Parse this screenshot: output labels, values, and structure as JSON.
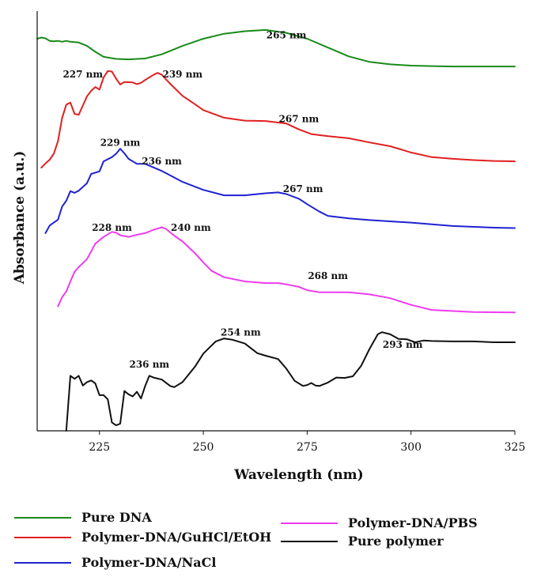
{
  "chart_data": {
    "type": "line",
    "xlabel": "Wavelength (nm)",
    "ylabel": "Absorbance (a.u.)",
    "xlim": [
      210,
      325
    ],
    "x_ticks": [
      225,
      250,
      275,
      300,
      325
    ],
    "y_ticks": "none",
    "legend_placement": "bottom",
    "series": [
      {
        "name": "Pure DNA",
        "color": "#1a8a1a",
        "points": [
          [
            210,
            0.934
          ],
          [
            211,
            0.937
          ],
          [
            212,
            0.935
          ],
          [
            213,
            0.929
          ],
          [
            214,
            0.928
          ],
          [
            215,
            0.929
          ],
          [
            216,
            0.927
          ],
          [
            217,
            0.929
          ],
          [
            218,
            0.927
          ],
          [
            220,
            0.925
          ],
          [
            222,
            0.917
          ],
          [
            224,
            0.903
          ],
          [
            226,
            0.891
          ],
          [
            229,
            0.886
          ],
          [
            232,
            0.885
          ],
          [
            236,
            0.887
          ],
          [
            240,
            0.897
          ],
          [
            245,
            0.917
          ],
          [
            250,
            0.934
          ],
          [
            255,
            0.946
          ],
          [
            260,
            0.952
          ],
          [
            265,
            0.955
          ],
          [
            270,
            0.948
          ],
          [
            275,
            0.934
          ],
          [
            280,
            0.913
          ],
          [
            285,
            0.892
          ],
          [
            290,
            0.879
          ],
          [
            295,
            0.873
          ],
          [
            300,
            0.87
          ],
          [
            305,
            0.869
          ],
          [
            310,
            0.868
          ],
          [
            320,
            0.868
          ],
          [
            325,
            0.868
          ]
        ]
      },
      {
        "name": "Polymer-DNA/GuHCl/EtOH",
        "color": "#e02020",
        "points": [
          [
            211,
            0.627
          ],
          [
            212,
            0.637
          ],
          [
            213,
            0.646
          ],
          [
            214,
            0.66
          ],
          [
            215,
            0.69
          ],
          [
            216,
            0.745
          ],
          [
            217,
            0.777
          ],
          [
            218,
            0.782
          ],
          [
            219,
            0.755
          ],
          [
            220,
            0.753
          ],
          [
            221,
            0.775
          ],
          [
            222,
            0.797
          ],
          [
            223,
            0.81
          ],
          [
            224,
            0.819
          ],
          [
            225,
            0.813
          ],
          [
            226,
            0.842
          ],
          [
            227,
            0.857
          ],
          [
            228,
            0.856
          ],
          [
            229,
            0.839
          ],
          [
            230,
            0.825
          ],
          [
            231,
            0.831
          ],
          [
            233,
            0.83
          ],
          [
            234,
            0.826
          ],
          [
            235,
            0.829
          ],
          [
            236,
            0.836
          ],
          [
            238,
            0.848
          ],
          [
            239,
            0.853
          ],
          [
            240,
            0.848
          ],
          [
            242,
            0.827
          ],
          [
            245,
            0.798
          ],
          [
            248,
            0.778
          ],
          [
            250,
            0.764
          ],
          [
            255,
            0.746
          ],
          [
            260,
            0.739
          ],
          [
            265,
            0.738
          ],
          [
            270,
            0.732
          ],
          [
            273,
            0.718
          ],
          [
            276,
            0.707
          ],
          [
            280,
            0.702
          ],
          [
            285,
            0.697
          ],
          [
            290,
            0.687
          ],
          [
            295,
            0.678
          ],
          [
            300,
            0.663
          ],
          [
            305,
            0.652
          ],
          [
            310,
            0.648
          ],
          [
            315,
            0.645
          ],
          [
            320,
            0.643
          ],
          [
            325,
            0.642
          ]
        ]
      },
      {
        "name": "Polymer-DNA/NaCl",
        "color": "#1f22d0",
        "points": [
          [
            212,
            0.471
          ],
          [
            213,
            0.489
          ],
          [
            214,
            0.496
          ],
          [
            215,
            0.503
          ],
          [
            216,
            0.534
          ],
          [
            217,
            0.548
          ],
          [
            218,
            0.571
          ],
          [
            219,
            0.567
          ],
          [
            220,
            0.572
          ],
          [
            222,
            0.59
          ],
          [
            223,
            0.612
          ],
          [
            225,
            0.618
          ],
          [
            226,
            0.642
          ],
          [
            228,
            0.652
          ],
          [
            229,
            0.66
          ],
          [
            230,
            0.672
          ],
          [
            231,
            0.661
          ],
          [
            232,
            0.648
          ],
          [
            234,
            0.636
          ],
          [
            236,
            0.636
          ],
          [
            240,
            0.619
          ],
          [
            245,
            0.593
          ],
          [
            250,
            0.574
          ],
          [
            255,
            0.561
          ],
          [
            260,
            0.561
          ],
          [
            265,
            0.566
          ],
          [
            268,
            0.568
          ],
          [
            270,
            0.564
          ],
          [
            273,
            0.553
          ],
          [
            275,
            0.54
          ],
          [
            278,
            0.522
          ],
          [
            280,
            0.512
          ],
          [
            285,
            0.506
          ],
          [
            290,
            0.502
          ],
          [
            300,
            0.496
          ],
          [
            310,
            0.488
          ],
          [
            320,
            0.484
          ],
          [
            325,
            0.483
          ]
        ]
      },
      {
        "name": "Polymer-DNA/PBS",
        "color": "#ee3cee",
        "points": [
          [
            215,
            0.297
          ],
          [
            216,
            0.318
          ],
          [
            217,
            0.332
          ],
          [
            218,
            0.356
          ],
          [
            219,
            0.379
          ],
          [
            220,
            0.39
          ],
          [
            222,
            0.409
          ],
          [
            224,
            0.446
          ],
          [
            226,
            0.462
          ],
          [
            228,
            0.474
          ],
          [
            229,
            0.472
          ],
          [
            230,
            0.466
          ],
          [
            232,
            0.462
          ],
          [
            234,
            0.467
          ],
          [
            236,
            0.471
          ],
          [
            238,
            0.479
          ],
          [
            240,
            0.485
          ],
          [
            241,
            0.481
          ],
          [
            243,
            0.465
          ],
          [
            245,
            0.451
          ],
          [
            248,
            0.423
          ],
          [
            250,
            0.401
          ],
          [
            252,
            0.381
          ],
          [
            255,
            0.366
          ],
          [
            260,
            0.356
          ],
          [
            265,
            0.352
          ],
          [
            268,
            0.352
          ],
          [
            270,
            0.349
          ],
          [
            273,
            0.343
          ],
          [
            275,
            0.335
          ],
          [
            278,
            0.33
          ],
          [
            285,
            0.33
          ],
          [
            290,
            0.325
          ],
          [
            295,
            0.316
          ],
          [
            300,
            0.3
          ],
          [
            305,
            0.288
          ],
          [
            315,
            0.283
          ],
          [
            325,
            0.282
          ]
        ]
      },
      {
        "name": "Pure polymer",
        "color": "#111111",
        "points": [
          [
            217,
            0.0
          ],
          [
            218,
            0.131
          ],
          [
            219,
            0.124
          ],
          [
            220,
            0.131
          ],
          [
            221,
            0.108
          ],
          [
            222,
            0.116
          ],
          [
            223,
            0.12
          ],
          [
            224,
            0.113
          ],
          [
            225,
            0.085
          ],
          [
            226,
            0.085
          ],
          [
            227,
            0.075
          ],
          [
            228,
            0.02
          ],
          [
            229,
            0.013
          ],
          [
            230,
            0.017
          ],
          [
            231,
            0.095
          ],
          [
            232,
            0.087
          ],
          [
            233,
            0.082
          ],
          [
            234,
            0.093
          ],
          [
            235,
            0.077
          ],
          [
            236,
            0.107
          ],
          [
            237,
            0.131
          ],
          [
            238,
            0.127
          ],
          [
            240,
            0.122
          ],
          [
            242,
            0.107
          ],
          [
            243,
            0.104
          ],
          [
            245,
            0.116
          ],
          [
            248,
            0.153
          ],
          [
            250,
            0.184
          ],
          [
            253,
            0.213
          ],
          [
            255,
            0.22
          ],
          [
            257,
            0.217
          ],
          [
            260,
            0.208
          ],
          [
            263,
            0.185
          ],
          [
            265,
            0.179
          ],
          [
            268,
            0.171
          ],
          [
            270,
            0.148
          ],
          [
            272,
            0.119
          ],
          [
            274,
            0.107
          ],
          [
            275,
            0.109
          ],
          [
            276,
            0.114
          ],
          [
            277,
            0.108
          ],
          [
            278,
            0.107
          ],
          [
            280,
            0.115
          ],
          [
            282,
            0.127
          ],
          [
            284,
            0.126
          ],
          [
            286,
            0.13
          ],
          [
            288,
            0.155
          ],
          [
            290,
            0.195
          ],
          [
            292,
            0.23
          ],
          [
            293,
            0.235
          ],
          [
            295,
            0.23
          ],
          [
            297,
            0.219
          ],
          [
            299,
            0.218
          ],
          [
            301,
            0.211
          ],
          [
            303,
            0.215
          ],
          [
            305,
            0.214
          ],
          [
            310,
            0.213
          ],
          [
            315,
            0.213
          ],
          [
            320,
            0.211
          ],
          [
            325,
            0.211
          ]
        ]
      }
    ],
    "annotations": [
      {
        "text": "265 nm",
        "x": 270,
        "y": 0.935
      },
      {
        "text": "227 nm",
        "x": 221,
        "y": 0.842
      },
      {
        "text": "239 nm",
        "x": 245,
        "y": 0.842
      },
      {
        "text": "267 nm",
        "x": 273,
        "y": 0.735
      },
      {
        "text": "229 nm",
        "x": 230,
        "y": 0.679
      },
      {
        "text": "236 nm",
        "x": 240,
        "y": 0.635
      },
      {
        "text": "267 nm",
        "x": 274,
        "y": 0.569
      },
      {
        "text": "228 nm",
        "x": 228,
        "y": 0.476
      },
      {
        "text": "240 nm",
        "x": 247,
        "y": 0.476
      },
      {
        "text": "268 nm",
        "x": 280,
        "y": 0.362
      },
      {
        "text": "254 nm",
        "x": 259,
        "y": 0.227
      },
      {
        "text": "236 nm",
        "x": 237,
        "y": 0.151
      },
      {
        "text": "293 nm",
        "x": 298,
        "y": 0.198
      }
    ]
  },
  "legend": {
    "items": [
      {
        "label": "Pure DNA",
        "color": "#1a8a1a"
      },
      {
        "label": "Polymer-DNA/GuHCl/EtOH",
        "color": "#e02020"
      },
      {
        "label": "Polymer-DNA/NaCl",
        "color": "#1f22d0"
      },
      {
        "label": "Polymer-DNA/PBS",
        "color": "#ee3cee"
      },
      {
        "label": "Pure polymer",
        "color": "#111111"
      }
    ]
  }
}
